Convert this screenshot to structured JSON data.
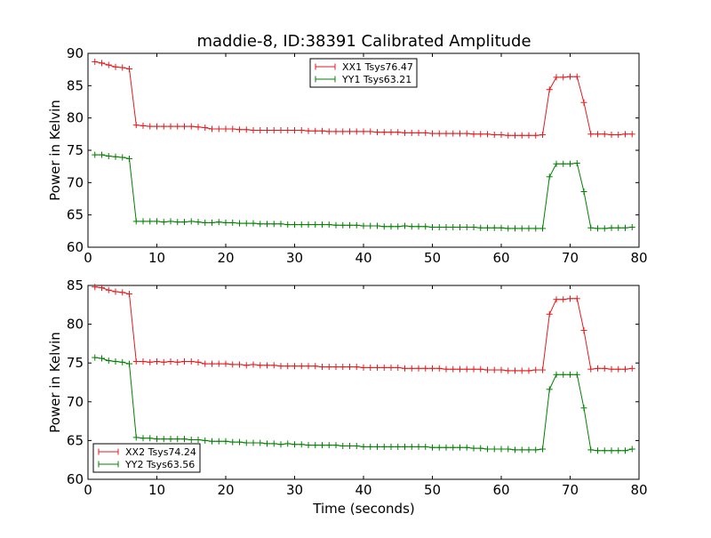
{
  "figure": {
    "title": "maddie-8, ID:38391 Calibrated Amplitude",
    "xlabel": "Time (seconds)"
  },
  "chart_data": [
    {
      "type": "line",
      "ylabel": "Power in Kelvin",
      "xlim": [
        0,
        80
      ],
      "ylim": [
        60,
        90
      ],
      "xticks": [
        0,
        10,
        20,
        30,
        40,
        50,
        60,
        70,
        80
      ],
      "yticks": [
        60,
        65,
        70,
        75,
        80,
        85,
        90
      ],
      "legend_position": "top-center",
      "x": [
        1,
        2,
        3,
        4,
        5,
        6,
        7,
        8,
        9,
        10,
        11,
        12,
        13,
        14,
        15,
        16,
        17,
        18,
        19,
        20,
        21,
        22,
        23,
        24,
        25,
        26,
        27,
        28,
        29,
        30,
        31,
        32,
        33,
        34,
        35,
        36,
        37,
        38,
        39,
        40,
        41,
        42,
        43,
        44,
        45,
        46,
        47,
        48,
        49,
        50,
        51,
        52,
        53,
        54,
        55,
        56,
        57,
        58,
        59,
        60,
        61,
        62,
        63,
        64,
        65,
        66,
        67,
        68,
        69,
        70,
        71,
        72,
        73,
        74,
        75,
        76,
        77,
        78,
        79
      ],
      "series": [
        {
          "name": "XX1 Tsys76.47",
          "color": "#e41a1c",
          "values": [
            88.7,
            88.5,
            88.2,
            87.9,
            87.8,
            87.6,
            78.9,
            78.8,
            78.7,
            78.7,
            78.7,
            78.7,
            78.7,
            78.7,
            78.7,
            78.6,
            78.5,
            78.3,
            78.3,
            78.3,
            78.3,
            78.2,
            78.2,
            78.1,
            78.1,
            78.1,
            78.1,
            78.1,
            78.1,
            78.1,
            78.1,
            78.0,
            78.0,
            78.0,
            77.9,
            77.9,
            77.9,
            77.9,
            77.9,
            77.9,
            77.9,
            77.8,
            77.8,
            77.8,
            77.8,
            77.7,
            77.7,
            77.7,
            77.7,
            77.6,
            77.6,
            77.6,
            77.6,
            77.6,
            77.6,
            77.5,
            77.5,
            77.5,
            77.4,
            77.4,
            77.3,
            77.3,
            77.3,
            77.3,
            77.3,
            77.4,
            84.4,
            86.3,
            86.3,
            86.4,
            86.4,
            82.4,
            77.5,
            77.5,
            77.5,
            77.4,
            77.4,
            77.5,
            77.5
          ]
        },
        {
          "name": "YY1 Tsys63.21",
          "color": "#008000",
          "values": [
            74.3,
            74.3,
            74.1,
            74.0,
            73.9,
            73.7,
            64.0,
            64.0,
            64.0,
            64.0,
            63.9,
            64.0,
            63.9,
            63.9,
            64.0,
            63.9,
            63.8,
            63.8,
            63.9,
            63.8,
            63.8,
            63.7,
            63.7,
            63.7,
            63.6,
            63.6,
            63.6,
            63.6,
            63.5,
            63.5,
            63.5,
            63.5,
            63.5,
            63.5,
            63.5,
            63.4,
            63.4,
            63.4,
            63.4,
            63.3,
            63.3,
            63.3,
            63.2,
            63.2,
            63.2,
            63.3,
            63.2,
            63.2,
            63.2,
            63.1,
            63.1,
            63.1,
            63.1,
            63.1,
            63.1,
            63.1,
            63.0,
            63.0,
            63.0,
            63.0,
            62.9,
            62.9,
            62.9,
            62.9,
            62.9,
            62.9,
            70.9,
            72.9,
            72.9,
            72.9,
            73.0,
            68.6,
            63.0,
            62.9,
            62.9,
            63.0,
            63.0,
            63.0,
            63.1
          ]
        }
      ]
    },
    {
      "type": "line",
      "ylabel": "Power in Kelvin",
      "xlim": [
        0,
        80
      ],
      "ylim": [
        60,
        85
      ],
      "xticks": [
        0,
        10,
        20,
        30,
        40,
        50,
        60,
        70,
        80
      ],
      "yticks": [
        60,
        65,
        70,
        75,
        80,
        85
      ],
      "legend_position": "bottom-left",
      "x": [
        1,
        2,
        3,
        4,
        5,
        6,
        7,
        8,
        9,
        10,
        11,
        12,
        13,
        14,
        15,
        16,
        17,
        18,
        19,
        20,
        21,
        22,
        23,
        24,
        25,
        26,
        27,
        28,
        29,
        30,
        31,
        32,
        33,
        34,
        35,
        36,
        37,
        38,
        39,
        40,
        41,
        42,
        43,
        44,
        45,
        46,
        47,
        48,
        49,
        50,
        51,
        52,
        53,
        54,
        55,
        56,
        57,
        58,
        59,
        60,
        61,
        62,
        63,
        64,
        65,
        66,
        67,
        68,
        69,
        70,
        71,
        72,
        73,
        74,
        75,
        76,
        77,
        78,
        79
      ],
      "series": [
        {
          "name": "XX2 Tsys74.24",
          "color": "#e41a1c",
          "values": [
            84.8,
            84.7,
            84.4,
            84.2,
            84.1,
            83.9,
            75.2,
            75.2,
            75.1,
            75.2,
            75.1,
            75.2,
            75.1,
            75.2,
            75.2,
            75.1,
            74.9,
            74.9,
            74.9,
            74.9,
            74.8,
            74.8,
            74.7,
            74.8,
            74.7,
            74.7,
            74.7,
            74.6,
            74.6,
            74.6,
            74.6,
            74.6,
            74.6,
            74.5,
            74.5,
            74.5,
            74.5,
            74.5,
            74.5,
            74.4,
            74.4,
            74.4,
            74.4,
            74.4,
            74.4,
            74.3,
            74.3,
            74.3,
            74.3,
            74.3,
            74.3,
            74.2,
            74.2,
            74.2,
            74.2,
            74.2,
            74.2,
            74.1,
            74.1,
            74.1,
            74.0,
            74.0,
            74.0,
            74.0,
            74.1,
            74.1,
            81.3,
            83.2,
            83.2,
            83.3,
            83.3,
            79.2,
            74.2,
            74.3,
            74.3,
            74.2,
            74.2,
            74.2,
            74.3
          ]
        },
        {
          "name": "YY2 Tsys63.56",
          "color": "#008000",
          "values": [
            75.7,
            75.6,
            75.3,
            75.2,
            75.1,
            74.9,
            65.4,
            65.3,
            65.3,
            65.2,
            65.2,
            65.2,
            65.2,
            65.2,
            65.1,
            65.1,
            65.0,
            64.9,
            64.9,
            64.9,
            64.8,
            64.8,
            64.7,
            64.7,
            64.7,
            64.6,
            64.6,
            64.5,
            64.6,
            64.5,
            64.5,
            64.4,
            64.4,
            64.4,
            64.4,
            64.4,
            64.3,
            64.3,
            64.3,
            64.2,
            64.2,
            64.2,
            64.2,
            64.2,
            64.2,
            64.2,
            64.2,
            64.2,
            64.2,
            64.1,
            64.1,
            64.1,
            64.1,
            64.1,
            64.1,
            64.0,
            64.0,
            63.9,
            63.9,
            63.9,
            63.9,
            63.8,
            63.8,
            63.8,
            63.8,
            63.9,
            71.6,
            73.5,
            73.5,
            73.5,
            73.5,
            69.2,
            63.8,
            63.7,
            63.7,
            63.7,
            63.7,
            63.7,
            63.9
          ]
        }
      ]
    }
  ]
}
